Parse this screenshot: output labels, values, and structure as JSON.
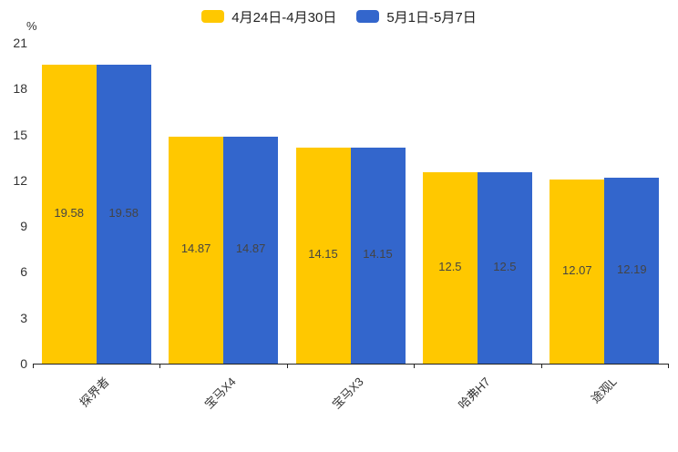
{
  "legend": {
    "position": "top"
  },
  "chart_data": {
    "type": "bar",
    "title": "",
    "xlabel": "",
    "ylabel": "%",
    "categories": [
      "探界者",
      "宝马X4",
      "宝马X3",
      "哈弗H7",
      "途观L"
    ],
    "series": [
      {
        "name": "4月24日-4月30日",
        "color": "#FFC800",
        "values": [
          19.58,
          14.87,
          14.15,
          12.5,
          12.07
        ]
      },
      {
        "name": "5月1日-5月7日",
        "color": "#3366CC",
        "values": [
          19.58,
          14.87,
          14.15,
          12.5,
          12.19
        ]
      }
    ],
    "ylim": [
      0,
      21
    ],
    "yticks": [
      0,
      3,
      6,
      9,
      12,
      15,
      18,
      21
    ],
    "grid": false,
    "legend_position": "top-center",
    "value_labels": "inside-center",
    "value_label_color": "#444444",
    "axis_color": "#222222",
    "category_label_rotation_deg": -45
  }
}
